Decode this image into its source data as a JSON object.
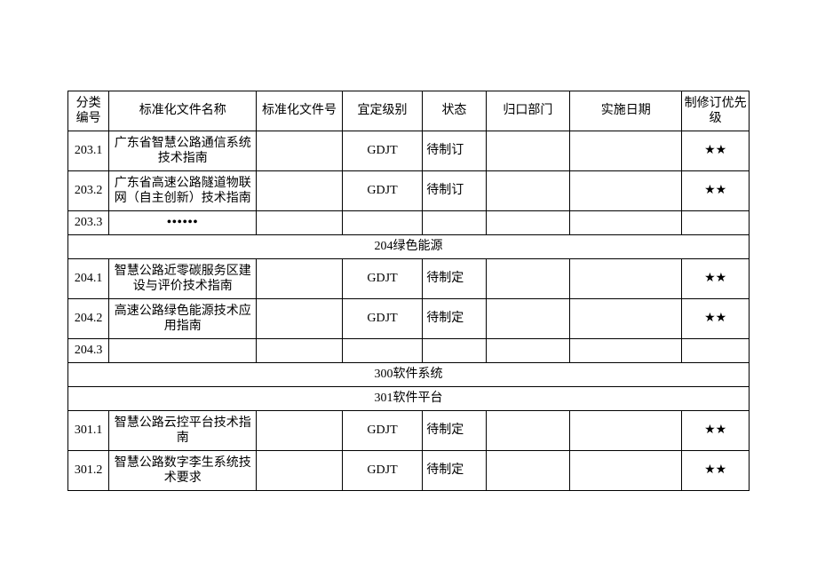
{
  "columns": {
    "a": "分类编号",
    "b": "标准化文件名称",
    "c": "标准化文件号",
    "d": "宜定级别",
    "e": "状态",
    "f": "归口部门",
    "g": "实施日期",
    "h": "制修订优先级"
  },
  "rows": {
    "r1": {
      "id": "203.1",
      "name": "广东省智慧公路通信系统技术指南",
      "level": "GDJT",
      "status": "待制订",
      "priority": "★★"
    },
    "r2": {
      "id": "203.2",
      "name": "广东省高速公路隧道物联网（自主创新）技术指南",
      "level": "GDJT",
      "status": "待制订",
      "priority": "★★"
    },
    "r3": {
      "id": "203.3",
      "name": "••••••"
    },
    "s1": "204绿色能源",
    "r4": {
      "id": "204.1",
      "name": "智慧公路近零碳服务区建设与评价技术指南",
      "level": "GDJT",
      "status": "待制定",
      "priority": "★★"
    },
    "r5": {
      "id": "204.2",
      "name": "高速公路绿色能源技术应用指南",
      "level": "GDJT",
      "status": "待制定",
      "priority": "★★"
    },
    "r6": {
      "id": "204.3"
    },
    "s2": "300软件系统",
    "s3": "301软件平台",
    "r7": {
      "id": "301.1",
      "name": "智慧公路云控平台技术指南",
      "level": "GDJT",
      "status": "待制定",
      "priority": "★★"
    },
    "r8": {
      "id": "301.2",
      "name": "智慧公路数字李生系统技术要求",
      "level": "GDJT",
      "status": "待制定",
      "priority": "★★"
    }
  }
}
